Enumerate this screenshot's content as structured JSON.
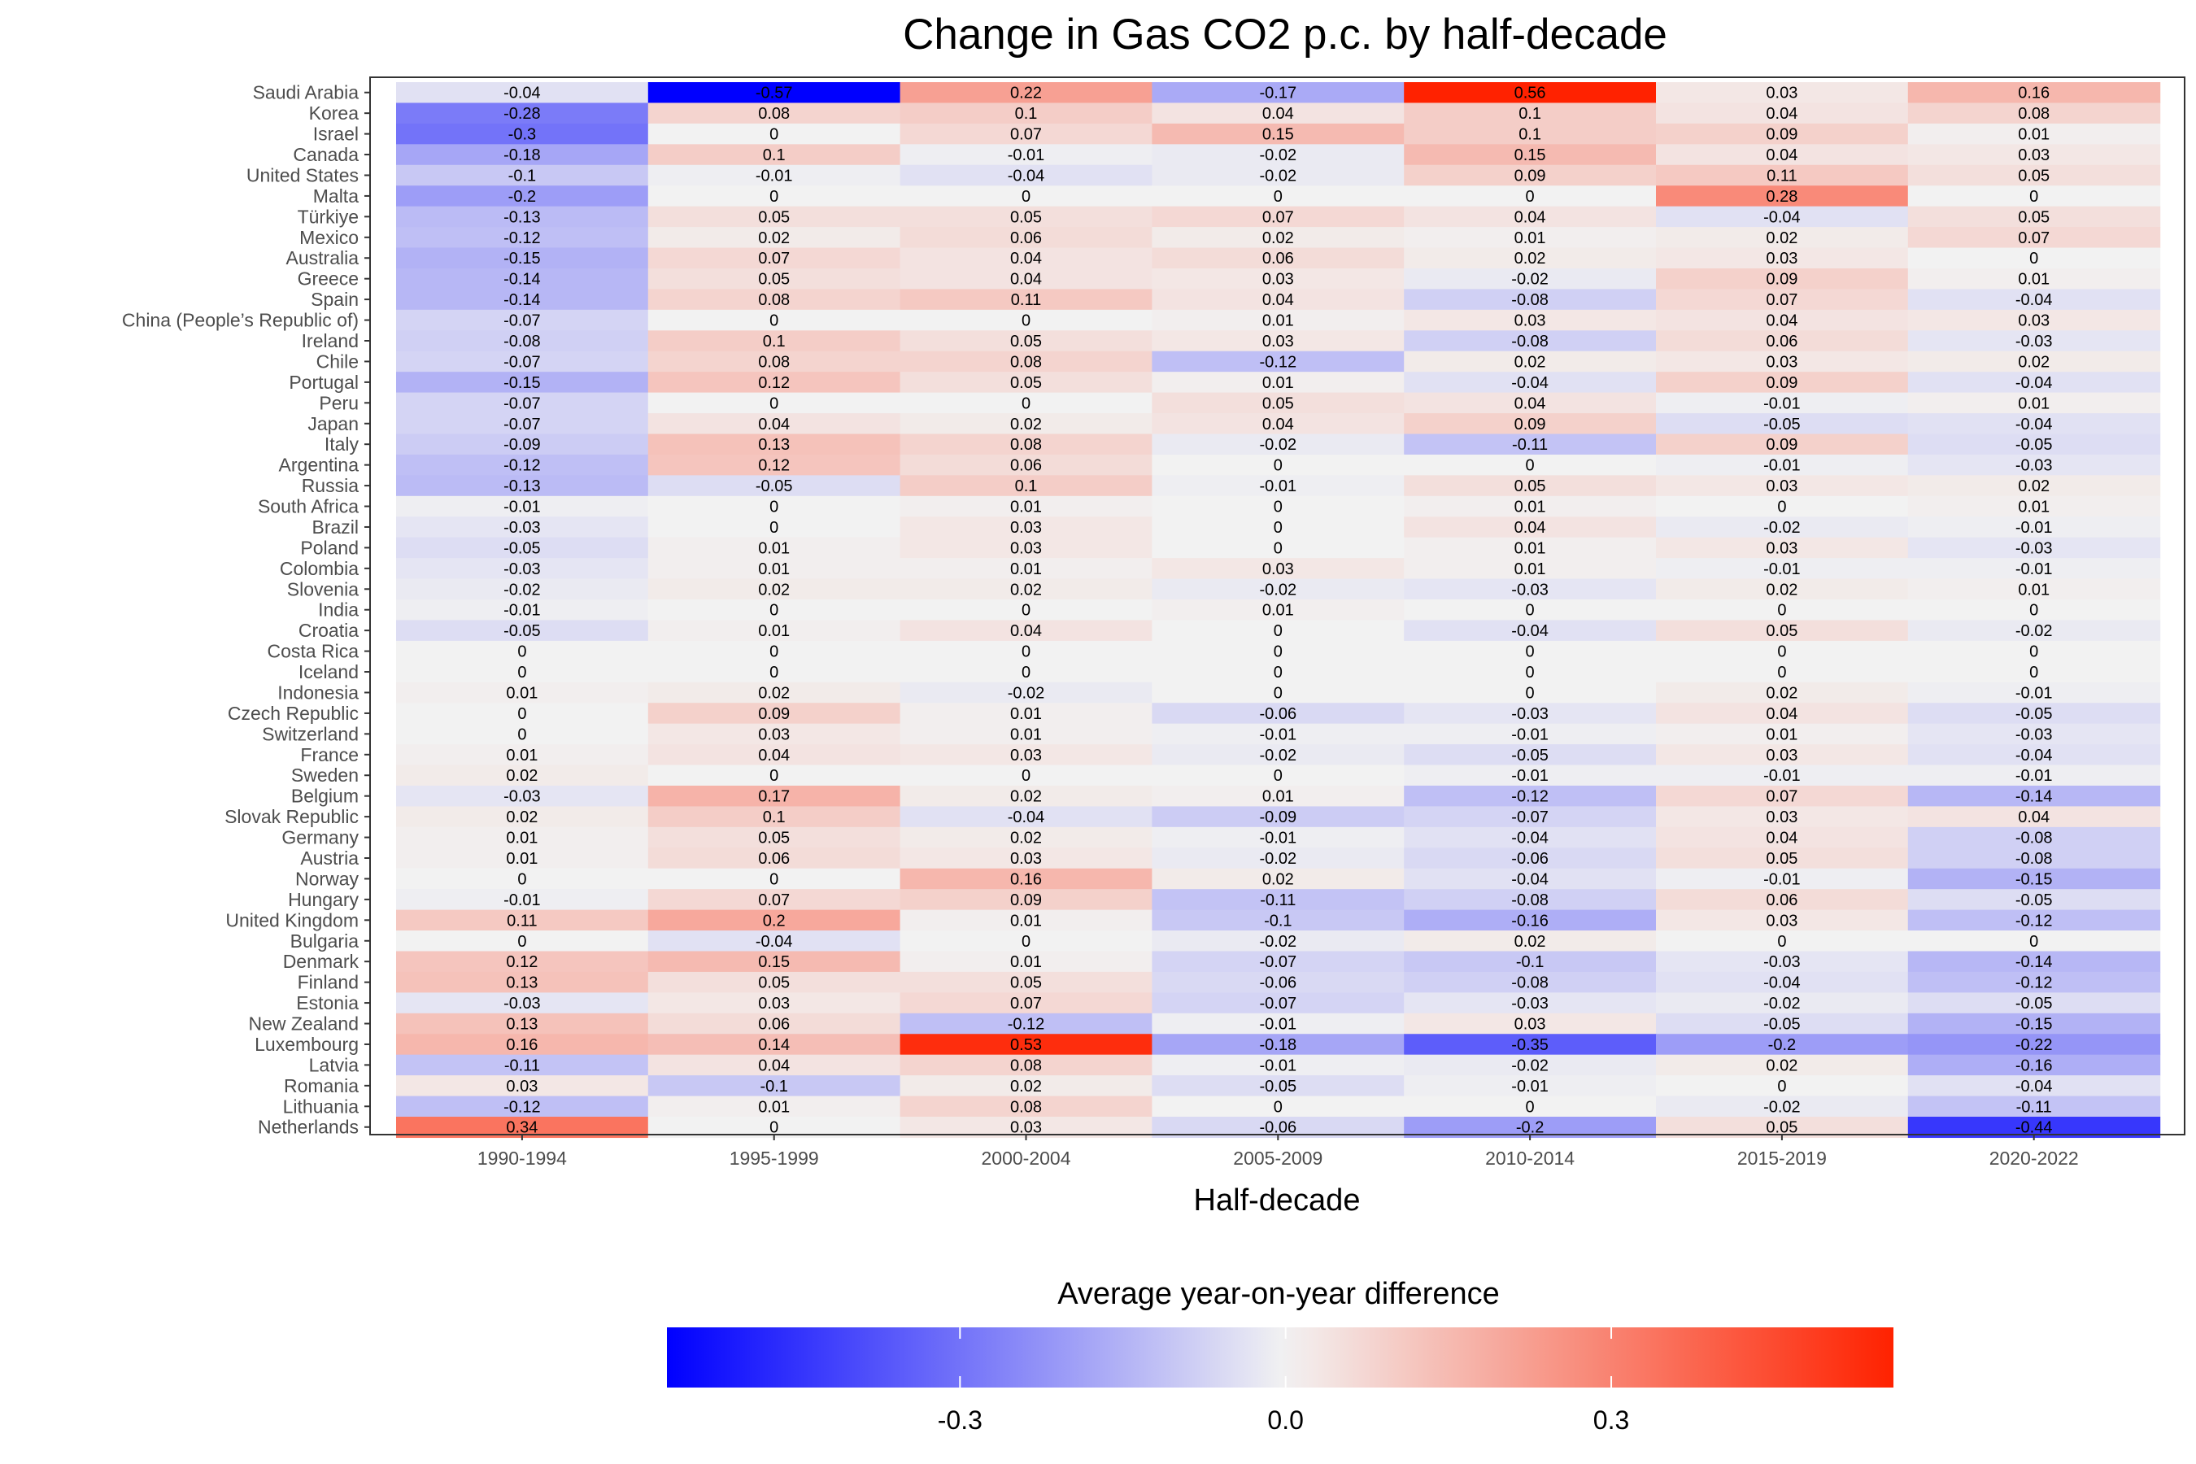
{
  "chart_data": {
    "type": "heatmap",
    "title": "Change in Gas CO2 p.c. by half-decade",
    "xlabel": "Half-decade",
    "legend_title": "Average year-on-year difference",
    "legend_ticks": [
      "-0.3",
      "0.0",
      "0.3"
    ],
    "legend_tick_values": [
      -0.3,
      0.0,
      0.3
    ],
    "legend_position": "bottom",
    "color_range": [
      -0.57,
      0.56
    ],
    "colors": {
      "low": "#0000FF",
      "mid": "#F2F2F2",
      "high": "#FF2200"
    },
    "columns": [
      "1990-1994",
      "1995-1999",
      "2000-2004",
      "2005-2009",
      "2010-2014",
      "2015-2019",
      "2020-2022"
    ],
    "rows": [
      {
        "name": "Saudi Arabia",
        "labels": [
          "-0.04",
          "-0.57",
          "0.22",
          "-0.17",
          "0.56",
          "0.03",
          "0.16"
        ]
      },
      {
        "name": "Korea",
        "labels": [
          "-0.28",
          "0.08",
          "0.1",
          "0.04",
          "0.1",
          "0.04",
          "0.08"
        ]
      },
      {
        "name": "Israel",
        "labels": [
          "-0.3",
          "0",
          "0.07",
          "0.15",
          "0.1",
          "0.09",
          "0.01"
        ]
      },
      {
        "name": "Canada",
        "labels": [
          "-0.18",
          "0.1",
          "-0.01",
          "-0.02",
          "0.15",
          "0.04",
          "0.03"
        ]
      },
      {
        "name": "United States",
        "labels": [
          "-0.1",
          "-0.01",
          "-0.04",
          "-0.02",
          "0.09",
          "0.11",
          "0.05"
        ]
      },
      {
        "name": "Malta",
        "labels": [
          "-0.2",
          "0",
          "0",
          "0",
          "0",
          "0.28",
          "0"
        ]
      },
      {
        "name": "Türkiye",
        "labels": [
          "-0.13",
          "0.05",
          "0.05",
          "0.07",
          "0.04",
          "-0.04",
          "0.05"
        ]
      },
      {
        "name": "Mexico",
        "labels": [
          "-0.12",
          "0.02",
          "0.06",
          "0.02",
          "0.01",
          "0.02",
          "0.07"
        ]
      },
      {
        "name": "Australia",
        "labels": [
          "-0.15",
          "0.07",
          "0.04",
          "0.06",
          "0.02",
          "0.03",
          "0"
        ]
      },
      {
        "name": "Greece",
        "labels": [
          "-0.14",
          "0.05",
          "0.04",
          "0.03",
          "-0.02",
          "0.09",
          "0.01"
        ]
      },
      {
        "name": "Spain",
        "labels": [
          "-0.14",
          "0.08",
          "0.11",
          "0.04",
          "-0.08",
          "0.07",
          "-0.04"
        ]
      },
      {
        "name": "China (People’s Republic of)",
        "labels": [
          "-0.07",
          "0",
          "0",
          "0.01",
          "0.03",
          "0.04",
          "0.03"
        ]
      },
      {
        "name": "Ireland",
        "labels": [
          "-0.08",
          "0.1",
          "0.05",
          "0.03",
          "-0.08",
          "0.06",
          "-0.03"
        ]
      },
      {
        "name": "Chile",
        "labels": [
          "-0.07",
          "0.08",
          "0.08",
          "-0.12",
          "0.02",
          "0.03",
          "0.02"
        ]
      },
      {
        "name": "Portugal",
        "labels": [
          "-0.15",
          "0.12",
          "0.05",
          "0.01",
          "-0.04",
          "0.09",
          "-0.04"
        ]
      },
      {
        "name": "Peru",
        "labels": [
          "-0.07",
          "0",
          "0",
          "0.05",
          "0.04",
          "-0.01",
          "0.01"
        ]
      },
      {
        "name": "Japan",
        "labels": [
          "-0.07",
          "0.04",
          "0.02",
          "0.04",
          "0.09",
          "-0.05",
          "-0.04"
        ]
      },
      {
        "name": "Italy",
        "labels": [
          "-0.09",
          "0.13",
          "0.08",
          "-0.02",
          "-0.11",
          "0.09",
          "-0.05"
        ]
      },
      {
        "name": "Argentina",
        "labels": [
          "-0.12",
          "0.12",
          "0.06",
          "0",
          "0",
          "-0.01",
          "-0.03"
        ]
      },
      {
        "name": "Russia",
        "labels": [
          "-0.13",
          "-0.05",
          "0.1",
          "-0.01",
          "0.05",
          "0.03",
          "0.02"
        ]
      },
      {
        "name": "South Africa",
        "labels": [
          "-0.01",
          "0",
          "0.01",
          "0",
          "0.01",
          "0",
          "0.01"
        ]
      },
      {
        "name": "Brazil",
        "labels": [
          "-0.03",
          "0",
          "0.03",
          "0",
          "0.04",
          "-0.02",
          "-0.01"
        ]
      },
      {
        "name": "Poland",
        "labels": [
          "-0.05",
          "0.01",
          "0.03",
          "0",
          "0.01",
          "0.03",
          "-0.03"
        ]
      },
      {
        "name": "Colombia",
        "labels": [
          "-0.03",
          "0.01",
          "0.01",
          "0.03",
          "0.01",
          "-0.01",
          "-0.01"
        ]
      },
      {
        "name": "Slovenia",
        "labels": [
          "-0.02",
          "0.02",
          "0.02",
          "-0.02",
          "-0.03",
          "0.02",
          "0.01"
        ]
      },
      {
        "name": "India",
        "labels": [
          "-0.01",
          "0",
          "0",
          "0.01",
          "0",
          "0",
          "0"
        ]
      },
      {
        "name": "Croatia",
        "labels": [
          "-0.05",
          "0.01",
          "0.04",
          "0",
          "-0.04",
          "0.05",
          "-0.02"
        ]
      },
      {
        "name": "Costa Rica",
        "labels": [
          "0",
          "0",
          "0",
          "0",
          "0",
          "0",
          "0"
        ]
      },
      {
        "name": "Iceland",
        "labels": [
          "0",
          "0",
          "0",
          "0",
          "0",
          "0",
          "0"
        ]
      },
      {
        "name": "Indonesia",
        "labels": [
          "0.01",
          "0.02",
          "-0.02",
          "0",
          "0",
          "0.02",
          "-0.01"
        ]
      },
      {
        "name": "Czech Republic",
        "labels": [
          "0",
          "0.09",
          "0.01",
          "-0.06",
          "-0.03",
          "0.04",
          "-0.05"
        ]
      },
      {
        "name": "Switzerland",
        "labels": [
          "0",
          "0.03",
          "0.01",
          "-0.01",
          "-0.01",
          "0.01",
          "-0.03"
        ]
      },
      {
        "name": "France",
        "labels": [
          "0.01",
          "0.04",
          "0.03",
          "-0.02",
          "-0.05",
          "0.03",
          "-0.04"
        ]
      },
      {
        "name": "Sweden",
        "labels": [
          "0.02",
          "0",
          "0",
          "0",
          "-0.01",
          "-0.01",
          "-0.01"
        ]
      },
      {
        "name": "Belgium",
        "labels": [
          "-0.03",
          "0.17",
          "0.02",
          "0.01",
          "-0.12",
          "0.07",
          "-0.14"
        ]
      },
      {
        "name": "Slovak Republic",
        "labels": [
          "0.02",
          "0.1",
          "-0.04",
          "-0.09",
          "-0.07",
          "0.03",
          "0.04"
        ]
      },
      {
        "name": "Germany",
        "labels": [
          "0.01",
          "0.05",
          "0.02",
          "-0.01",
          "-0.04",
          "0.04",
          "-0.08"
        ]
      },
      {
        "name": "Austria",
        "labels": [
          "0.01",
          "0.06",
          "0.03",
          "-0.02",
          "-0.06",
          "0.05",
          "-0.08"
        ]
      },
      {
        "name": "Norway",
        "labels": [
          "0",
          "0",
          "0.16",
          "0.02",
          "-0.04",
          "-0.01",
          "-0.15"
        ]
      },
      {
        "name": "Hungary",
        "labels": [
          "-0.01",
          "0.07",
          "0.09",
          "-0.11",
          "-0.08",
          "0.06",
          "-0.05"
        ]
      },
      {
        "name": "United Kingdom",
        "labels": [
          "0.11",
          "0.2",
          "0.01",
          "-0.1",
          "-0.16",
          "0.03",
          "-0.12"
        ]
      },
      {
        "name": "Bulgaria",
        "labels": [
          "0",
          "-0.04",
          "0",
          "-0.02",
          "0.02",
          "0",
          "0"
        ]
      },
      {
        "name": "Denmark",
        "labels": [
          "0.12",
          "0.15",
          "0.01",
          "-0.07",
          "-0.1",
          "-0.03",
          "-0.14"
        ]
      },
      {
        "name": "Finland",
        "labels": [
          "0.13",
          "0.05",
          "0.05",
          "-0.06",
          "-0.08",
          "-0.04",
          "-0.12"
        ]
      },
      {
        "name": "Estonia",
        "labels": [
          "-0.03",
          "0.03",
          "0.07",
          "-0.07",
          "-0.03",
          "-0.02",
          "-0.05"
        ]
      },
      {
        "name": "New Zealand",
        "labels": [
          "0.13",
          "0.06",
          "-0.12",
          "-0.01",
          "0.03",
          "-0.05",
          "-0.15"
        ]
      },
      {
        "name": "Luxembourg",
        "labels": [
          "0.16",
          "0.14",
          "0.53",
          "-0.18",
          "-0.35",
          "-0.2",
          "-0.22"
        ]
      },
      {
        "name": "Latvia",
        "labels": [
          "-0.11",
          "0.04",
          "0.08",
          "-0.01",
          "-0.02",
          "0.02",
          "-0.16"
        ]
      },
      {
        "name": "Romania",
        "labels": [
          "0.03",
          "-0.1",
          "0.02",
          "-0.05",
          "-0.01",
          "0",
          "-0.04"
        ]
      },
      {
        "name": "Lithuania",
        "labels": [
          "-0.12",
          "0.01",
          "0.08",
          "0",
          "0",
          "-0.02",
          "-0.11"
        ]
      },
      {
        "name": "Netherlands",
        "labels": [
          "0.34",
          "0",
          "0.03",
          "-0.06",
          "-0.2",
          "0.05",
          "-0.44"
        ]
      }
    ]
  }
}
